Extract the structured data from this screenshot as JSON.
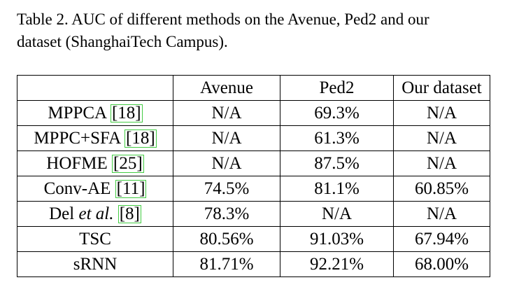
{
  "caption": {
    "line1": "Table 2. AUC of different methods on the Avenue, Ped2 and our",
    "line2": "dataset (ShanghaiTech Campus)."
  },
  "table": {
    "headers": [
      "",
      "Avenue",
      "Ped2",
      "Our dataset"
    ],
    "rows": [
      {
        "method": "MPPCA ",
        "ref": "[18]",
        "avenue": "N/A",
        "ped2": "69.3%",
        "ours": "N/A"
      },
      {
        "method": "MPPC+SFA ",
        "ref": "[18]",
        "avenue": "N/A",
        "ped2": "61.3%",
        "ours": "N/A"
      },
      {
        "method": "HOFME ",
        "ref": "[25]",
        "avenue": "N/A",
        "ped2": "87.5%",
        "ours": "N/A"
      },
      {
        "method": "Conv-AE ",
        "ref": "[11]",
        "avenue": "74.5%",
        "ped2": "81.1%",
        "ours": "60.85%"
      },
      {
        "method_pre": "Del ",
        "method_em": "et al.",
        "ref": "[8]",
        "avenue": "78.3%",
        "ped2": "N/A",
        "ours": "N/A"
      },
      {
        "method": "TSC",
        "avenue": "80.56%",
        "ped2": "91.03%",
        "ours": "67.94%"
      },
      {
        "method": "sRNN",
        "avenue": "81.71%",
        "ped2": "92.21%",
        "ours": "68.00%"
      }
    ]
  },
  "colors": {
    "citation_box": "#44cc44"
  }
}
